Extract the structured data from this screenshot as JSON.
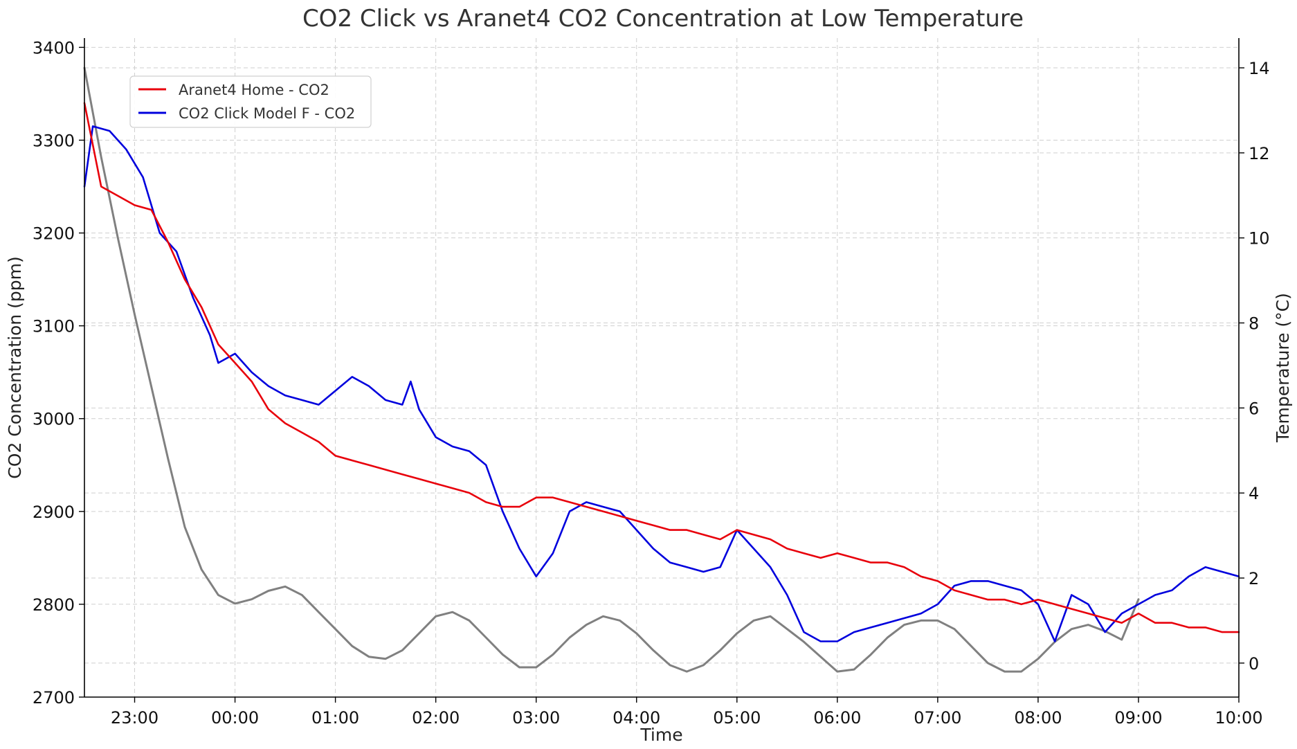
{
  "chart_data": {
    "type": "line",
    "title": "CO2 Click vs Aranet4 CO2 Concentration at Low Temperature",
    "xlabel": "Time",
    "ylabel": "CO2 Concentration (ppm)",
    "y2label": "Temperature (°C)",
    "xlim": [
      "22:30",
      "10:00"
    ],
    "ylim": [
      2700,
      3410
    ],
    "y2lim": [
      -0.8,
      14.7
    ],
    "grid": true,
    "legend_position": "upper-left",
    "x_ticks": [
      "23:00",
      "00:00",
      "01:00",
      "02:00",
      "03:00",
      "04:00",
      "05:00",
      "06:00",
      "07:00",
      "08:00",
      "09:00",
      "10:00"
    ],
    "y_ticks": [
      2700,
      2800,
      2900,
      3000,
      3100,
      3200,
      3300,
      3400
    ],
    "y2_ticks": [
      0,
      2,
      4,
      6,
      8,
      10,
      12,
      14
    ],
    "series": [
      {
        "name": "Aranet4 Home - CO2",
        "axis": "left",
        "color": "#e8000b",
        "x": [
          "22:30",
          "22:40",
          "22:50",
          "23:00",
          "23:10",
          "23:20",
          "23:30",
          "23:40",
          "23:50",
          "00:00",
          "00:10",
          "00:20",
          "00:30",
          "00:40",
          "00:50",
          "01:00",
          "01:10",
          "01:20",
          "01:30",
          "01:40",
          "01:50",
          "02:00",
          "02:10",
          "02:20",
          "02:30",
          "02:40",
          "02:50",
          "03:00",
          "03:10",
          "03:20",
          "03:30",
          "03:40",
          "03:50",
          "04:00",
          "04:10",
          "04:20",
          "04:30",
          "04:40",
          "04:50",
          "05:00",
          "05:10",
          "05:20",
          "05:30",
          "05:40",
          "05:50",
          "06:00",
          "06:10",
          "06:20",
          "06:30",
          "06:40",
          "06:50",
          "07:00",
          "07:10",
          "07:20",
          "07:30",
          "07:40",
          "07:50",
          "08:00",
          "08:10",
          "08:20",
          "08:30",
          "08:40",
          "08:50",
          "09:00",
          "09:10",
          "09:20",
          "09:30",
          "09:40",
          "09:50",
          "10:00"
        ],
        "y": [
          3340,
          3250,
          3240,
          3230,
          3225,
          3190,
          3150,
          3120,
          3080,
          3060,
          3040,
          3010,
          2995,
          2985,
          2975,
          2960,
          2955,
          2950,
          2945,
          2940,
          2935,
          2930,
          2925,
          2920,
          2910,
          2905,
          2905,
          2915,
          2915,
          2910,
          2905,
          2900,
          2895,
          2890,
          2885,
          2880,
          2880,
          2875,
          2870,
          2880,
          2875,
          2870,
          2860,
          2855,
          2850,
          2855,
          2850,
          2845,
          2845,
          2840,
          2830,
          2825,
          2815,
          2810,
          2805,
          2805,
          2800,
          2805,
          2800,
          2795,
          2790,
          2785,
          2780,
          2790,
          2780,
          2780,
          2775,
          2775,
          2770,
          2770
        ]
      },
      {
        "name": "CO2 Click Model F - CO2",
        "axis": "left",
        "color": "#0000dd",
        "x": [
          "22:30",
          "22:35",
          "22:45",
          "22:55",
          "23:05",
          "23:15",
          "23:25",
          "23:35",
          "23:45",
          "23:50",
          "00:00",
          "00:10",
          "00:20",
          "00:30",
          "00:40",
          "00:50",
          "01:00",
          "01:10",
          "01:20",
          "01:30",
          "01:40",
          "01:45",
          "01:50",
          "02:00",
          "02:10",
          "02:20",
          "02:30",
          "02:40",
          "02:50",
          "03:00",
          "03:10",
          "03:20",
          "03:30",
          "03:40",
          "03:50",
          "04:00",
          "04:10",
          "04:20",
          "04:30",
          "04:40",
          "04:50",
          "05:00",
          "05:10",
          "05:20",
          "05:30",
          "05:40",
          "05:50",
          "06:00",
          "06:10",
          "06:20",
          "06:30",
          "06:40",
          "06:50",
          "07:00",
          "07:10",
          "07:20",
          "07:30",
          "07:40",
          "07:50",
          "08:00",
          "08:10",
          "08:20",
          "08:30",
          "08:40",
          "08:50",
          "09:00",
          "09:10",
          "09:20",
          "09:30",
          "09:40",
          "09:50",
          "10:00"
        ],
        "y": [
          3250,
          3315,
          3310,
          3290,
          3260,
          3200,
          3180,
          3130,
          3090,
          3060,
          3070,
          3050,
          3035,
          3025,
          3020,
          3015,
          3030,
          3045,
          3035,
          3020,
          3015,
          3040,
          3010,
          2980,
          2970,
          2965,
          2950,
          2900,
          2860,
          2830,
          2855,
          2900,
          2910,
          2905,
          2900,
          2880,
          2860,
          2845,
          2840,
          2835,
          2840,
          2880,
          2860,
          2840,
          2810,
          2770,
          2760,
          2760,
          2770,
          2775,
          2780,
          2785,
          2790,
          2800,
          2820,
          2825,
          2825,
          2820,
          2815,
          2800,
          2760,
          2810,
          2800,
          2770,
          2790,
          2800,
          2810,
          2815,
          2830,
          2840,
          2835,
          2830
        ]
      },
      {
        "name": "",
        "axis": "right",
        "color": "#808080",
        "x": [
          "22:30",
          "22:40",
          "22:50",
          "23:00",
          "23:10",
          "23:20",
          "23:30",
          "23:40",
          "23:50",
          "00:00",
          "00:10",
          "00:20",
          "00:30",
          "00:40",
          "00:50",
          "01:00",
          "01:10",
          "01:20",
          "01:30",
          "01:40",
          "01:50",
          "02:00",
          "02:10",
          "02:20",
          "02:30",
          "02:40",
          "02:50",
          "03:00",
          "03:10",
          "03:20",
          "03:30",
          "03:40",
          "03:50",
          "04:00",
          "04:10",
          "04:20",
          "04:30",
          "04:40",
          "04:50",
          "05:00",
          "05:10",
          "05:20",
          "05:30",
          "05:40",
          "05:50",
          "06:00",
          "06:10",
          "06:20",
          "06:30",
          "06:40",
          "06:50",
          "07:00",
          "07:10",
          "07:20",
          "07:30",
          "07:40",
          "07:50",
          "08:00",
          "08:10",
          "08:20",
          "08:30",
          "08:40",
          "08:50",
          "09:00"
        ],
        "y": [
          14.0,
          11.9,
          10.0,
          8.2,
          6.5,
          4.8,
          3.2,
          2.2,
          1.6,
          1.4,
          1.5,
          1.7,
          1.8,
          1.6,
          1.2,
          0.8,
          0.4,
          0.15,
          0.1,
          0.3,
          0.7,
          1.1,
          1.2,
          1.0,
          0.6,
          0.2,
          -0.1,
          -0.1,
          0.2,
          0.6,
          0.9,
          1.1,
          1.0,
          0.7,
          0.3,
          -0.05,
          -0.2,
          -0.05,
          0.3,
          0.7,
          1.0,
          1.1,
          0.8,
          0.5,
          0.15,
          -0.2,
          -0.15,
          0.2,
          0.6,
          0.9,
          1.0,
          1.0,
          0.8,
          0.4,
          0.0,
          -0.2,
          -0.2,
          0.1,
          0.5,
          0.8,
          0.9,
          0.75,
          0.55,
          1.5
        ]
      }
    ]
  }
}
